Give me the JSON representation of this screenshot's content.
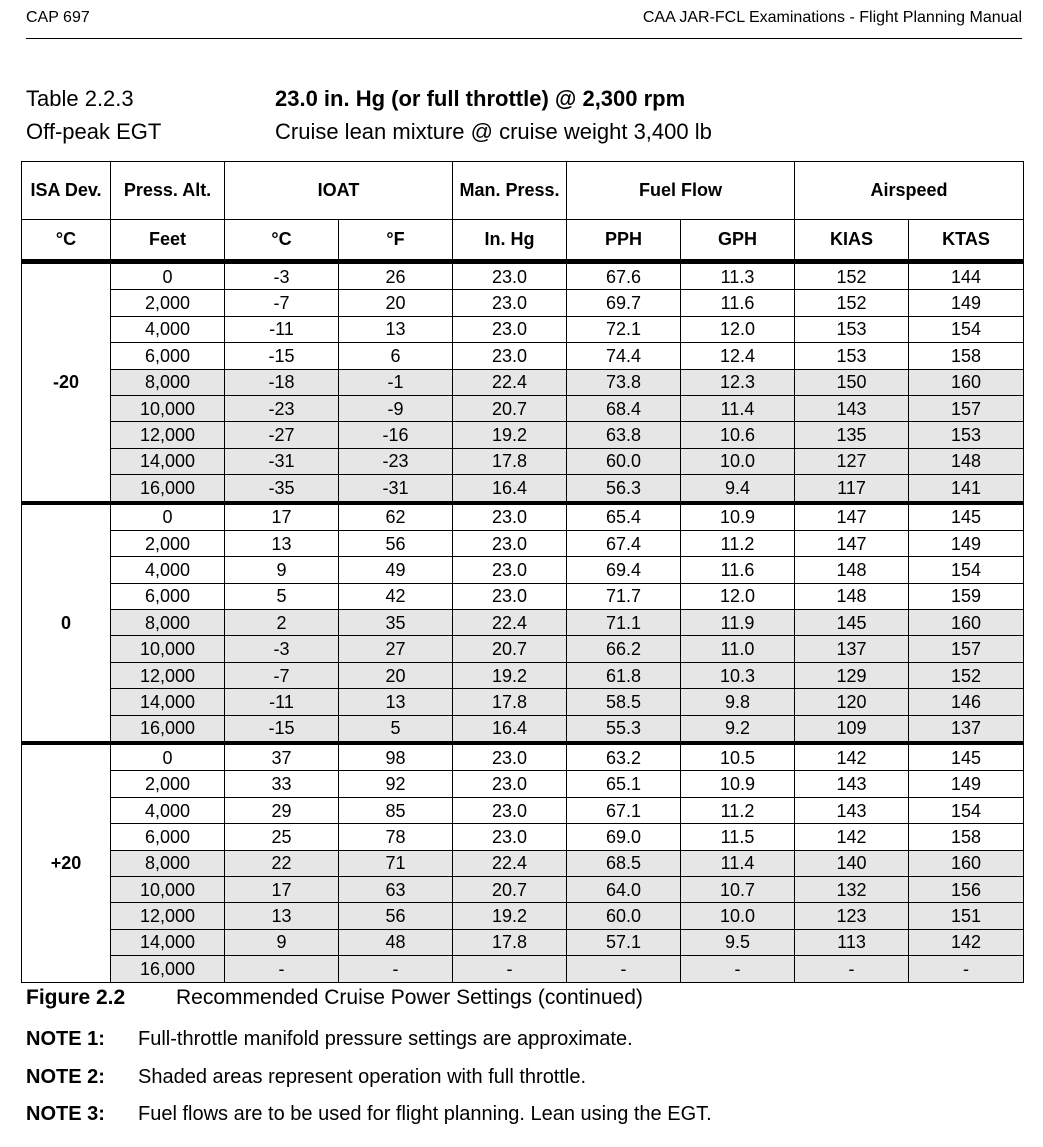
{
  "header": {
    "left": "CAP 697",
    "right": "CAA JAR-FCL Examinations - Flight Planning Manual"
  },
  "table_block": {
    "label_line1": "Table 2.2.3",
    "label_line2": "Off-peak EGT",
    "title_line1": "23.0 in. Hg (or full throttle) @ 2,300 rpm",
    "title_line2": "Cruise lean mixture @ cruise weight 3,400 lb"
  },
  "columns": {
    "isa": "ISA Dev.",
    "press_alt": "Press. Alt.",
    "ioat": "IOAT",
    "man_press": "Man. Press.",
    "fuel_flow": "Fuel Flow",
    "airspeed": "Airspeed",
    "u_isa": "°C",
    "u_alt": "Feet",
    "u_ioat_c": "°C",
    "u_ioat_f": "°F",
    "u_man": "In. Hg",
    "u_pph": "PPH",
    "u_gph": "GPH",
    "u_kias": "KIAS",
    "u_ktas": "KTAS"
  },
  "groups": [
    {
      "isa": "-20",
      "rows": [
        [
          "0",
          "-3",
          "26",
          "23.0",
          "67.6",
          "11.3",
          "152",
          "144"
        ],
        [
          "2,000",
          "-7",
          "20",
          "23.0",
          "69.7",
          "11.6",
          "152",
          "149"
        ],
        [
          "4,000",
          "-11",
          "13",
          "23.0",
          "72.1",
          "12.0",
          "153",
          "154"
        ],
        [
          "6,000",
          "-15",
          "6",
          "23.0",
          "74.4",
          "12.4",
          "153",
          "158"
        ],
        [
          "8,000",
          "-18",
          "-1",
          "22.4",
          "73.8",
          "12.3",
          "150",
          "160"
        ],
        [
          "10,000",
          "-23",
          "-9",
          "20.7",
          "68.4",
          "11.4",
          "143",
          "157"
        ],
        [
          "12,000",
          "-27",
          "-16",
          "19.2",
          "63.8",
          "10.6",
          "135",
          "153"
        ],
        [
          "14,000",
          "-31",
          "-23",
          "17.8",
          "60.0",
          "10.0",
          "127",
          "148"
        ],
        [
          "16,000",
          "-35",
          "-31",
          "16.4",
          "56.3",
          "9.4",
          "117",
          "141"
        ]
      ]
    },
    {
      "isa": "0",
      "rows": [
        [
          "0",
          "17",
          "62",
          "23.0",
          "65.4",
          "10.9",
          "147",
          "145"
        ],
        [
          "2,000",
          "13",
          "56",
          "23.0",
          "67.4",
          "11.2",
          "147",
          "149"
        ],
        [
          "4,000",
          "9",
          "49",
          "23.0",
          "69.4",
          "11.6",
          "148",
          "154"
        ],
        [
          "6,000",
          "5",
          "42",
          "23.0",
          "71.7",
          "12.0",
          "148",
          "159"
        ],
        [
          "8,000",
          "2",
          "35",
          "22.4",
          "71.1",
          "11.9",
          "145",
          "160"
        ],
        [
          "10,000",
          "-3",
          "27",
          "20.7",
          "66.2",
          "11.0",
          "137",
          "157"
        ],
        [
          "12,000",
          "-7",
          "20",
          "19.2",
          "61.8",
          "10.3",
          "129",
          "152"
        ],
        [
          "14,000",
          "-11",
          "13",
          "17.8",
          "58.5",
          "9.8",
          "120",
          "146"
        ],
        [
          "16,000",
          "-15",
          "5",
          "16.4",
          "55.3",
          "9.2",
          "109",
          "137"
        ]
      ]
    },
    {
      "isa": "+20",
      "rows": [
        [
          "0",
          "37",
          "98",
          "23.0",
          "63.2",
          "10.5",
          "142",
          "145"
        ],
        [
          "2,000",
          "33",
          "92",
          "23.0",
          "65.1",
          "10.9",
          "143",
          "149"
        ],
        [
          "4,000",
          "29",
          "85",
          "23.0",
          "67.1",
          "11.2",
          "143",
          "154"
        ],
        [
          "6,000",
          "25",
          "78",
          "23.0",
          "69.0",
          "11.5",
          "142",
          "158"
        ],
        [
          "8,000",
          "22",
          "71",
          "22.4",
          "68.5",
          "11.4",
          "140",
          "160"
        ],
        [
          "10,000",
          "17",
          "63",
          "20.7",
          "64.0",
          "10.7",
          "132",
          "156"
        ],
        [
          "12,000",
          "13",
          "56",
          "19.2",
          "60.0",
          "10.0",
          "123",
          "151"
        ],
        [
          "14,000",
          "9",
          "48",
          "17.8",
          "57.1",
          "9.5",
          "113",
          "142"
        ],
        [
          "16,000",
          "-",
          "-",
          "-",
          "-",
          "-",
          "-",
          "-"
        ]
      ]
    }
  ],
  "figure": {
    "label": "Figure 2.2",
    "caption": "Recommended Cruise Power Settings (continued)"
  },
  "notes": [
    {
      "label": "NOTE 1:",
      "text": "Full-throttle manifold pressure settings are approximate."
    },
    {
      "label": "NOTE 2:",
      "text": "Shaded areas represent operation with full throttle."
    },
    {
      "label": "NOTE 3:",
      "text": "Fuel flows are to be used for flight planning. Lean using the EGT."
    }
  ],
  "shade_color": "#e6e6e6"
}
